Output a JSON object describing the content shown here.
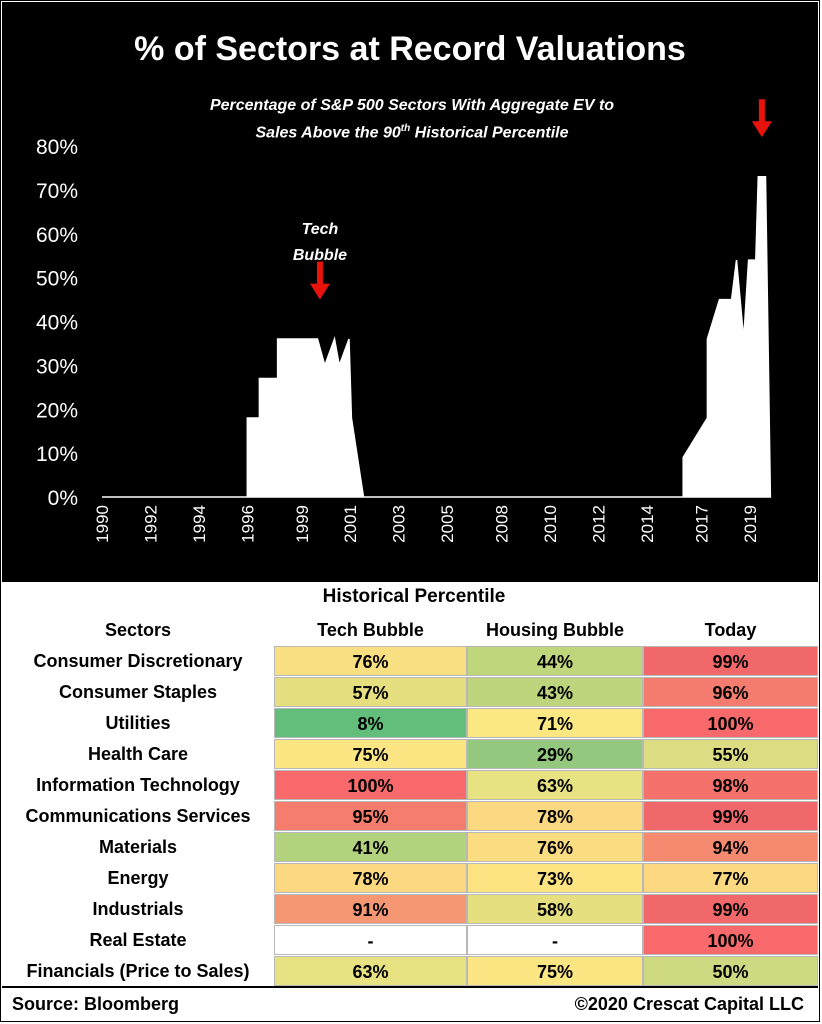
{
  "chart_data": {
    "type": "area",
    "title": "% of Sectors at Record Valuations",
    "subtitle_line1": "Percentage of S&P 500 Sectors With Aggregate EV to",
    "subtitle_line2_a": "Sales Above the 90",
    "subtitle_sup": "th",
    "subtitle_line2_b": " Historical Percentile",
    "y_ticks": [
      "0%",
      "10%",
      "20%",
      "30%",
      "40%",
      "50%",
      "60%",
      "70%",
      "80%"
    ],
    "ylim": [
      0,
      80
    ],
    "x_ticks": [
      "1990",
      "1992",
      "1994",
      "1996",
      "1999",
      "2001",
      "2003",
      "2005",
      "2008",
      "2010",
      "2012",
      "2014",
      "2017",
      "2019"
    ],
    "x_tick_positions": [
      1990,
      1992,
      1994,
      1996,
      1998.25,
      2000.25,
      2002.25,
      2004.25,
      2006.5,
      2008.5,
      2010.5,
      2012.5,
      2014.75,
      2016.75
    ],
    "xlim": [
      1990,
      2017.75
    ],
    "annotation_text": [
      "Tech",
      "Bubble"
    ],
    "annotation_x": 1999.0,
    "arrows": [
      {
        "x": 1999.0,
        "y": 45
      },
      {
        "x": 2017.25,
        "y": 82
      }
    ],
    "series": [
      {
        "values": [
          [
            1990,
            0
          ],
          [
            1992,
            0
          ],
          [
            1993,
            0
          ],
          [
            1994,
            0
          ],
          [
            1995,
            0
          ],
          [
            1996,
            0
          ],
          [
            1996,
            18
          ],
          [
            1996.5,
            18
          ],
          [
            1996.5,
            27
          ],
          [
            1997.25,
            27
          ],
          [
            1997.25,
            36
          ],
          [
            1998.9,
            36
          ],
          [
            1999.2,
            30
          ],
          [
            1999.6,
            36
          ],
          [
            1999.8,
            30
          ],
          [
            2000.2,
            36
          ],
          [
            2000.3,
            18
          ],
          [
            2000.8,
            0
          ],
          [
            2003,
            0
          ],
          [
            2006,
            0
          ],
          [
            2010,
            0
          ],
          [
            2014,
            0
          ],
          [
            2014,
            9
          ],
          [
            2015,
            18
          ],
          [
            2015,
            36
          ],
          [
            2015.5,
            45
          ],
          [
            2016,
            45
          ],
          [
            2016.2,
            54
          ],
          [
            2016.5,
            36
          ],
          [
            2016.7,
            54
          ],
          [
            2017,
            54
          ],
          [
            2017.1,
            73
          ],
          [
            2017.4,
            73
          ],
          [
            2017.6,
            0
          ]
        ]
      }
    ]
  },
  "historical_heading": "Historical Percentile",
  "headers": {
    "sector": "Sectors",
    "tech": "Tech Bubble",
    "housing": "Housing Bubble",
    "today": "Today"
  },
  "rows": [
    {
      "sector": "Consumer Discretionary",
      "tech": "76%",
      "housing": "44%",
      "today": "99%",
      "c": [
        "#f8df82",
        "#c0d67c",
        "#f0686a"
      ]
    },
    {
      "sector": "Consumer Staples",
      "tech": "57%",
      "housing": "43%",
      "today": "96%",
      "c": [
        "#e5df80",
        "#bfd57d",
        "#f37c6e"
      ]
    },
    {
      "sector": "Utilities",
      "tech": "8%",
      "housing": "71%",
      "today": "100%",
      "c": [
        "#63be7b",
        "#fce883",
        "#f8696b"
      ]
    },
    {
      "sector": "Health Care",
      "tech": "75%",
      "housing": "29%",
      "today": "55%",
      "c": [
        "#fce583",
        "#94c87e",
        "#dcdc82"
      ]
    },
    {
      "sector": "Information Technology",
      "tech": "100%",
      "housing": "63%",
      "today": "98%",
      "c": [
        "#f8696b",
        "#e8e382",
        "#f5716c"
      ]
    },
    {
      "sector": "Communications Services",
      "tech": "95%",
      "housing": "78%",
      "today": "99%",
      "c": [
        "#f47d6e",
        "#fcd881",
        "#f0686a"
      ]
    },
    {
      "sector": "Materials",
      "tech": "41%",
      "housing": "76%",
      "today": "94%",
      "c": [
        "#b3d27e",
        "#fcdc81",
        "#f58a70"
      ]
    },
    {
      "sector": "Energy",
      "tech": "78%",
      "housing": "73%",
      "today": "77%",
      "c": [
        "#fcd881",
        "#fde382",
        "#fcd981"
      ]
    },
    {
      "sector": "Industrials",
      "tech": "91%",
      "housing": "58%",
      "today": "99%",
      "c": [
        "#f69774",
        "#e5df80",
        "#f0686a"
      ]
    },
    {
      "sector": "Real Estate",
      "tech": "-",
      "housing": "-",
      "today": "100%",
      "c": [
        "#ffffff",
        "#ffffff",
        "#f8696b"
      ]
    },
    {
      "sector": "Financials (Price to Sales)",
      "tech": "63%",
      "housing": "75%",
      "today": "50%",
      "c": [
        "#e8e382",
        "#fce583",
        "#cfd981"
      ]
    }
  ],
  "footer": {
    "source": "Source: Bloomberg",
    "copyright": "©2020 Crescat Capital LLC"
  }
}
